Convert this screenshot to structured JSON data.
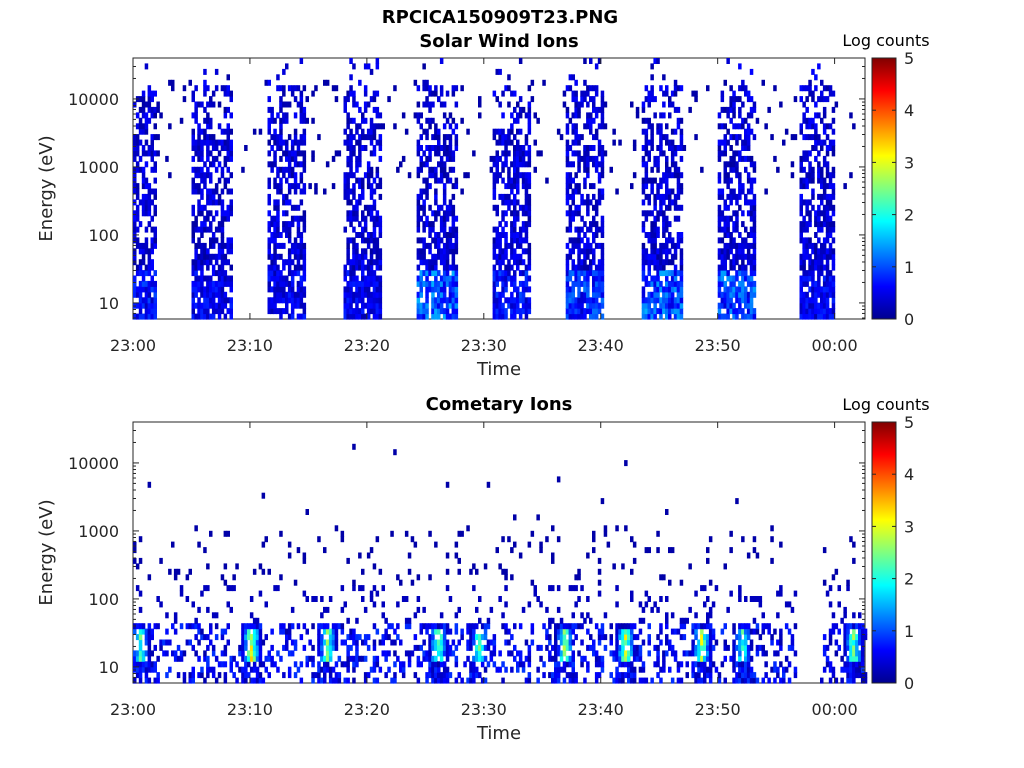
{
  "figure_title": "RPCICA150909T23.PNG",
  "chart_data": [
    {
      "type": "heatmap",
      "title": "Solar Wind Ions",
      "xlabel": "Time",
      "ylabel": "Energy (eV)",
      "yscale": "log",
      "ylim": [
        5.8,
        40000
      ],
      "xlim": [
        "23:00",
        "00:02"
      ],
      "x_ticks": [
        "23:00",
        "23:10",
        "23:20",
        "23:30",
        "23:40",
        "23:50",
        "00:00"
      ],
      "y_ticks": [
        "10",
        "100",
        "1000",
        "10000"
      ],
      "colorbar": {
        "label": "Log counts",
        "range": [
          0,
          5
        ],
        "ticks": [
          "0",
          "1",
          "2",
          "3",
          "4",
          "5"
        ]
      },
      "colormap": "jet",
      "pattern": "ion bursts of ~3 min every ~6.4 min",
      "bursts": [
        {
          "start": "23:00.0",
          "end": "23:01.9",
          "max_log_counts": 1.0
        },
        {
          "start": "23:05.0",
          "end": "23:08.3",
          "max_log_counts": 0.8
        },
        {
          "start": "23:11.4",
          "end": "23:14.6",
          "max_log_counts": 0.8
        },
        {
          "start": "23:17.8",
          "end": "23:21.0",
          "max_log_counts": 0.8
        },
        {
          "start": "23:24.2",
          "end": "23:27.5",
          "max_log_counts": 1.5
        },
        {
          "start": "23:30.6",
          "end": "23:33.9",
          "max_log_counts": 1.0
        },
        {
          "start": "23:37.0",
          "end": "23:40.1",
          "max_log_counts": 1.2
        },
        {
          "start": "23:43.5",
          "end": "23:46.8",
          "max_log_counts": 1.5
        },
        {
          "start": "23:49.8",
          "end": "23:53.1",
          "max_log_counts": 1.4
        },
        {
          "start": "23:56.8",
          "end": "23:59.9",
          "max_log_counts": 0.8
        }
      ]
    },
    {
      "type": "heatmap",
      "title": "Cometary Ions",
      "xlabel": "Time",
      "ylabel": "Energy (eV)",
      "yscale": "log",
      "ylim": [
        5.8,
        40000
      ],
      "xlim": [
        "23:00",
        "00:02"
      ],
      "x_ticks": [
        "23:00",
        "23:10",
        "23:20",
        "23:30",
        "23:40",
        "23:50",
        "00:00"
      ],
      "y_ticks": [
        "10",
        "100",
        "1000",
        "10000"
      ],
      "colorbar": {
        "label": "Log counts",
        "range": [
          0,
          5
        ],
        "ticks": [
          "0",
          "1",
          "2",
          "3",
          "4",
          "5"
        ]
      },
      "colormap": "jet",
      "pattern": "low-energy (~10-40 eV) enhancements every ~6.4 min",
      "peaks": [
        {
          "time": "23:00.5",
          "max_log_counts": 2.5
        },
        {
          "time": "23:10.0",
          "max_log_counts": 3.6
        },
        {
          "time": "23:16.5",
          "max_log_counts": 3.2
        },
        {
          "time": "23:26.0",
          "max_log_counts": 3.0
        },
        {
          "time": "23:29.5",
          "max_log_counts": 2.8
        },
        {
          "time": "23:36.8",
          "max_log_counts": 3.0
        },
        {
          "time": "23:42.0",
          "max_log_counts": 3.4
        },
        {
          "time": "23:48.5",
          "max_log_counts": 3.3
        },
        {
          "time": "23:52.0",
          "max_log_counts": 2.6
        },
        {
          "time": "00:01.5",
          "max_log_counts": 3.0
        }
      ]
    }
  ]
}
